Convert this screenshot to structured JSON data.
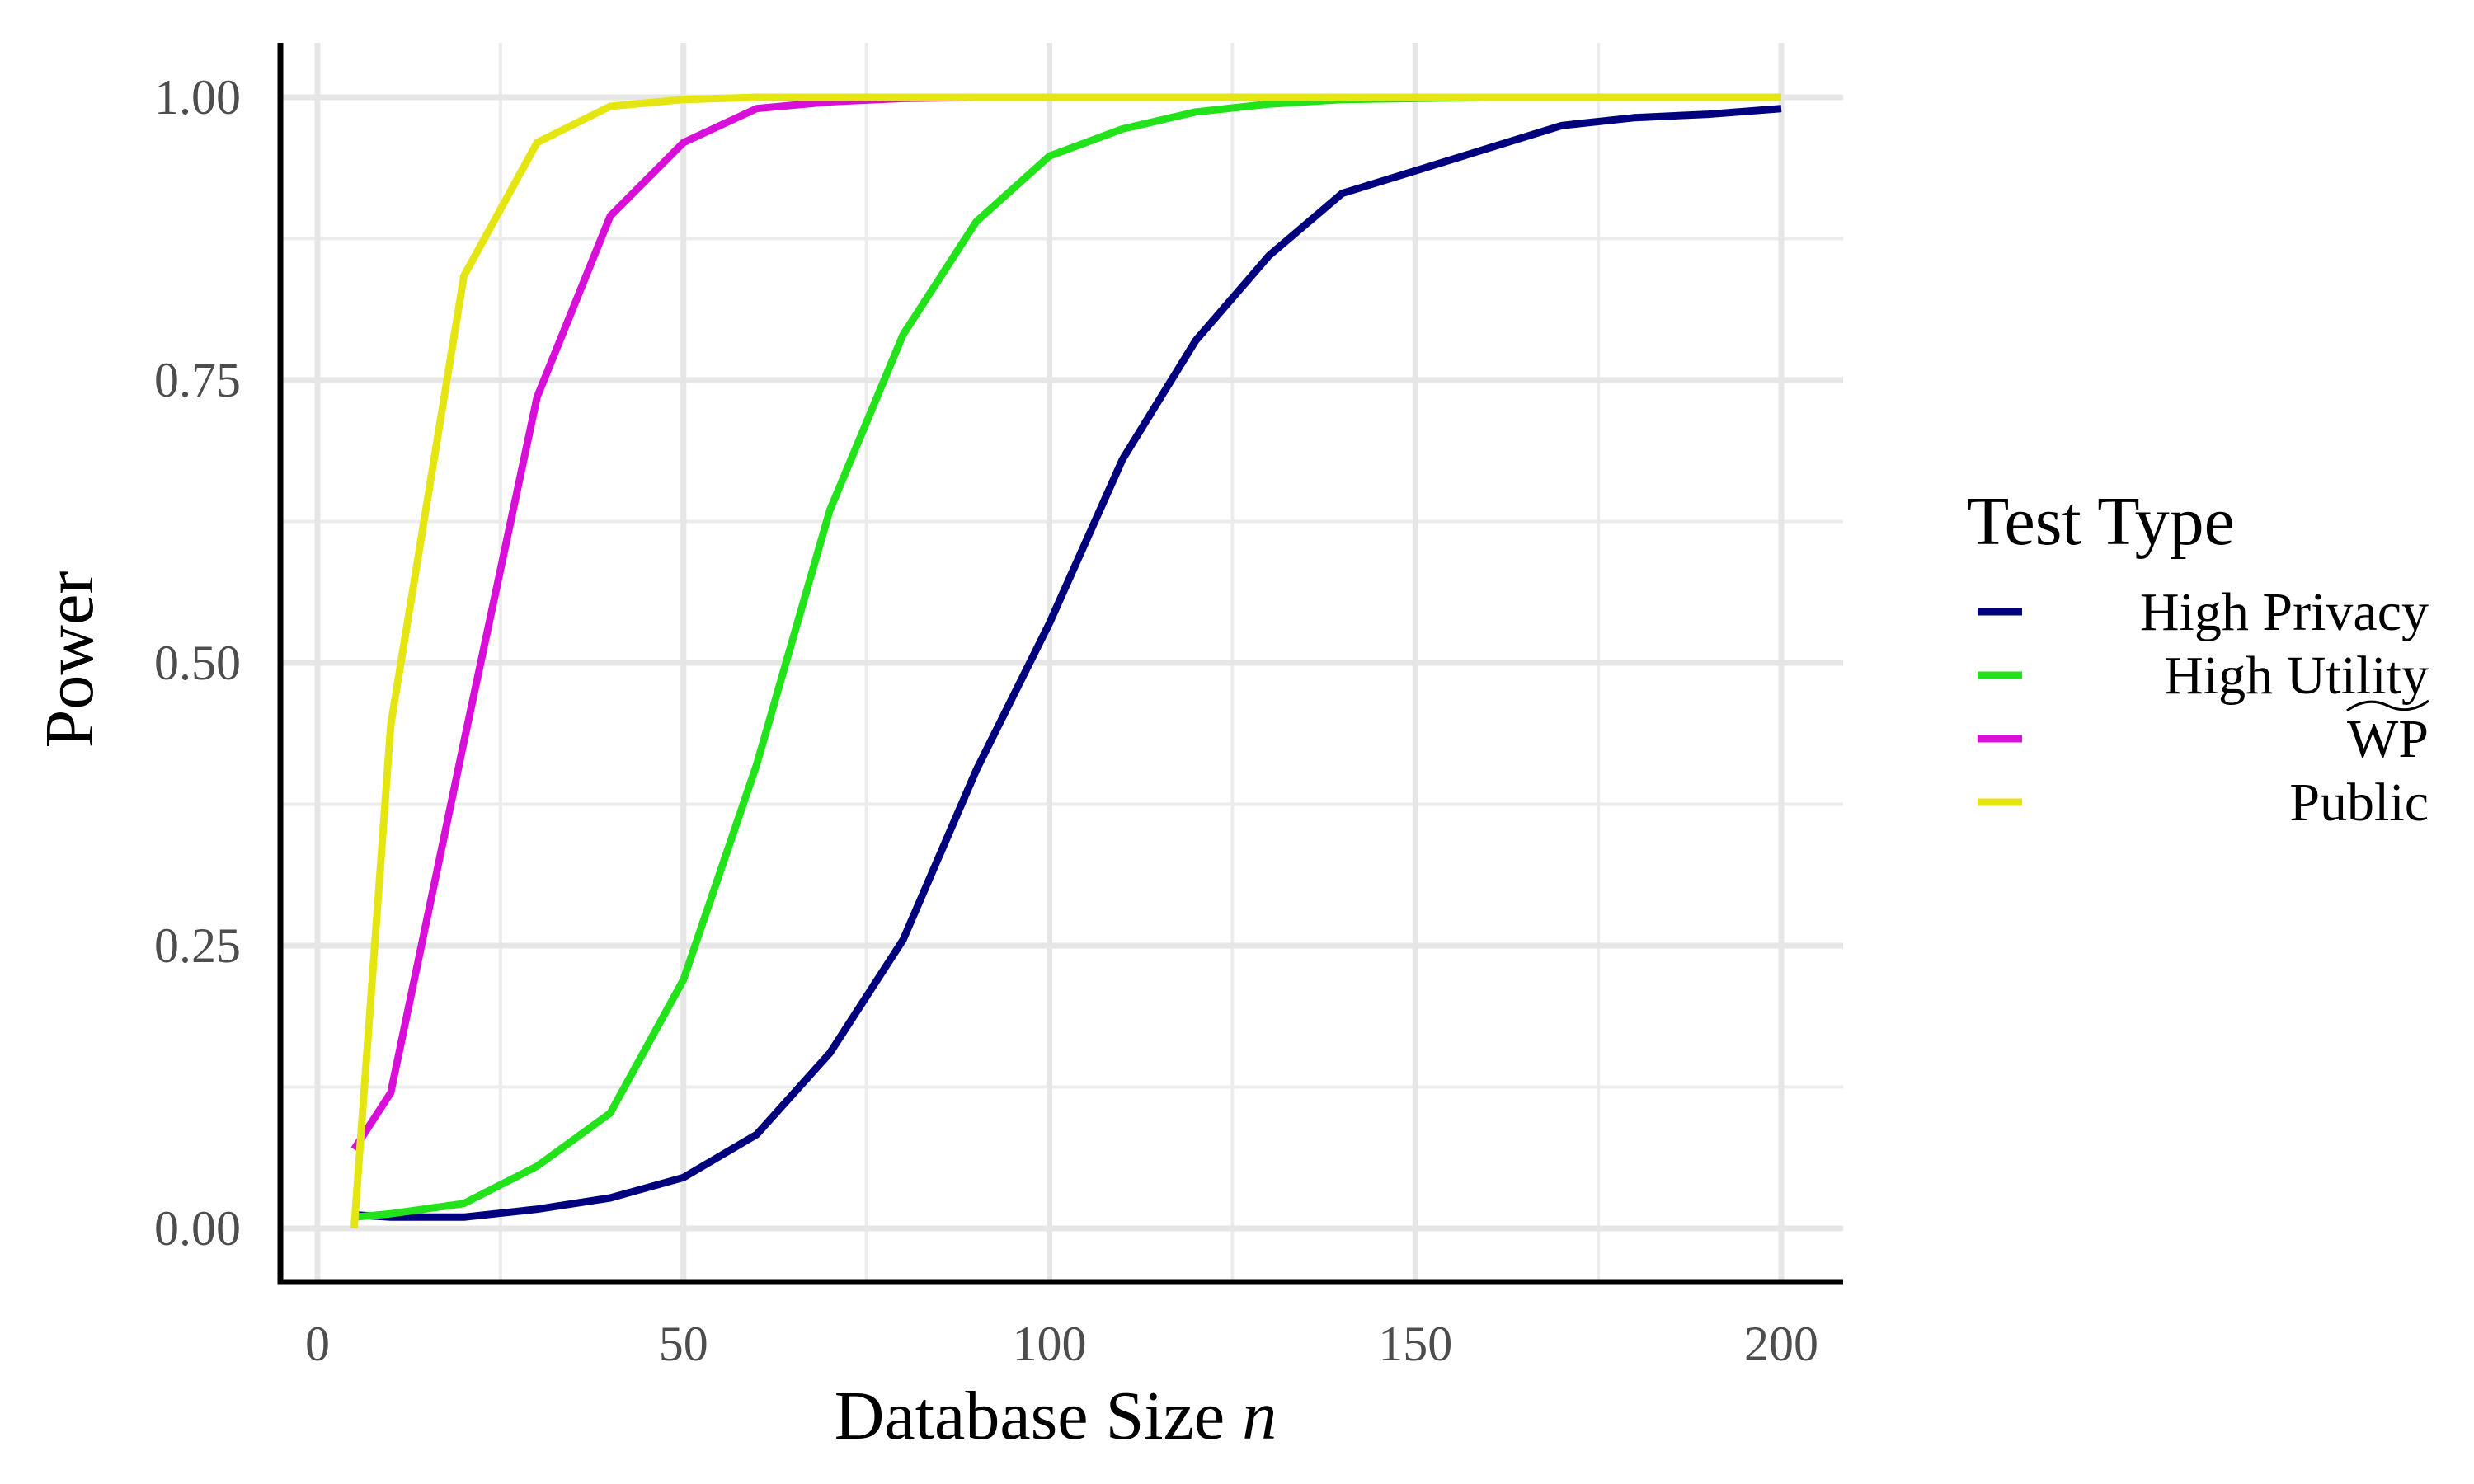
{
  "chart_data": {
    "type": "line",
    "title": "",
    "xlabel": "Database Size",
    "xlabel_var": "n",
    "ylabel": "Power",
    "xlim": [
      0,
      200
    ],
    "ylim": [
      0,
      1
    ],
    "xticks": [
      0,
      50,
      100,
      150,
      200
    ],
    "xtick_labels": [
      "0",
      "50",
      "100",
      "150",
      "200"
    ],
    "yticks": [
      0,
      0.25,
      0.5,
      0.75,
      1.0
    ],
    "ytick_labels": [
      "0.00",
      "0.25",
      "0.50",
      "0.75",
      "1.00"
    ],
    "grid": true,
    "legend": {
      "title": "Test Type",
      "placement": "right"
    },
    "series": [
      {
        "name": "High Privacy",
        "color": "#00007f",
        "x": [
          5,
          10,
          20,
          30,
          40,
          50,
          60,
          70,
          80,
          90,
          100,
          110,
          120,
          130,
          140,
          150,
          160,
          170,
          180,
          190,
          200
        ],
        "y": [
          0.012,
          0.01,
          0.01,
          0.017,
          0.027,
          0.045,
          0.083,
          0.155,
          0.255,
          0.405,
          0.535,
          0.68,
          0.785,
          0.86,
          0.915,
          0.935,
          0.955,
          0.975,
          0.982,
          0.985,
          0.99
        ]
      },
      {
        "name": "High Utility",
        "color": "#22e31a",
        "x": [
          5,
          10,
          20,
          30,
          40,
          50,
          60,
          70,
          80,
          90,
          100,
          110,
          120,
          130,
          140,
          150,
          160,
          170,
          180,
          190,
          200
        ],
        "y": [
          0.01,
          0.013,
          0.022,
          0.055,
          0.102,
          0.22,
          0.41,
          0.635,
          0.79,
          0.89,
          0.948,
          0.972,
          0.987,
          0.994,
          0.998,
          0.999,
          1.0,
          1.0,
          1.0,
          1.0,
          1.0
        ]
      },
      {
        "name": "WP",
        "name_accent": "wide-tilde",
        "color": "#d80fd8",
        "x": [
          5,
          10,
          20,
          30,
          40,
          50,
          60,
          70,
          80,
          90,
          100,
          110,
          120,
          130,
          140,
          150,
          160,
          170,
          180,
          190,
          200
        ],
        "y": [
          0.07,
          0.12,
          0.43,
          0.735,
          0.895,
          0.96,
          0.99,
          0.996,
          0.999,
          1.0,
          1.0,
          1.0,
          1.0,
          1.0,
          1.0,
          1.0,
          1.0,
          1.0,
          1.0,
          1.0,
          1.0
        ]
      },
      {
        "name": "Public",
        "color": "#e5e512",
        "x": [
          5,
          10,
          20,
          30,
          40,
          50,
          60,
          70,
          80,
          90,
          100,
          110,
          120,
          130,
          140,
          150,
          160,
          170,
          180,
          190,
          200
        ],
        "y": [
          0.0,
          0.445,
          0.842,
          0.96,
          0.992,
          0.998,
          1.0,
          1.0,
          1.0,
          1.0,
          1.0,
          1.0,
          1.0,
          1.0,
          1.0,
          1.0,
          1.0,
          1.0,
          1.0,
          1.0,
          1.0
        ]
      }
    ]
  }
}
